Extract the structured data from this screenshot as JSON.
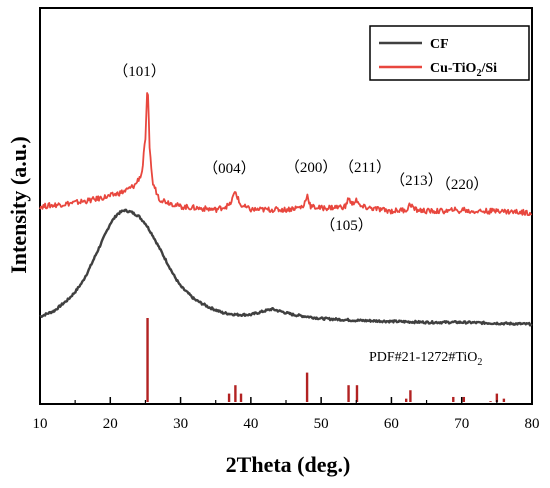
{
  "chart_data": {
    "type": "line",
    "xlabel": "2Theta (deg.)",
    "ylabel": "Intensity (a.u.)",
    "xlim": [
      10,
      80
    ],
    "x_ticks": [
      10,
      20,
      30,
      40,
      50,
      60,
      70,
      80
    ],
    "y_ticks_labeled": false,
    "grid": false,
    "legend_position": "top-right",
    "series": [
      {
        "name": "CF",
        "color": "#404040",
        "x": [
          10,
          12,
          14,
          15,
          16,
          17,
          18,
          19,
          20,
          21,
          22,
          23,
          24,
          25,
          26,
          27,
          28,
          29,
          30,
          32,
          34,
          36,
          38,
          40,
          42,
          43,
          44,
          46,
          50,
          55,
          60,
          65,
          70,
          75,
          80
        ],
        "y": [
          0.06,
          0.09,
          0.15,
          0.19,
          0.24,
          0.31,
          0.39,
          0.47,
          0.55,
          0.6,
          0.62,
          0.61,
          0.59,
          0.55,
          0.49,
          0.42,
          0.35,
          0.28,
          0.22,
          0.15,
          0.11,
          0.08,
          0.07,
          0.07,
          0.09,
          0.1,
          0.09,
          0.07,
          0.05,
          0.04,
          0.035,
          0.03,
          0.03,
          0.025,
          0.02
        ]
      },
      {
        "name": "Cu-TiO2/Si",
        "color": "#e8473e",
        "x": [
          10,
          14,
          17,
          20,
          22,
          23.5,
          24.5,
          25,
          25.3,
          25.6,
          26,
          27,
          30,
          35,
          37,
          37.8,
          38.5,
          40,
          45,
          47.5,
          48,
          48.5,
          50,
          53.5,
          53.9,
          54.4,
          55,
          55.5,
          57,
          60,
          62.2,
          62.7,
          63.3,
          65,
          68.5,
          68.8,
          69.2,
          70,
          70.3,
          70.7,
          74.8,
          75.1,
          75.5,
          80
        ],
        "y": [
          0.2,
          0.22,
          0.24,
          0.27,
          0.3,
          0.34,
          0.42,
          0.65,
          1.0,
          0.6,
          0.36,
          0.25,
          0.2,
          0.18,
          0.21,
          0.3,
          0.21,
          0.18,
          0.18,
          0.2,
          0.28,
          0.2,
          0.19,
          0.2,
          0.26,
          0.21,
          0.25,
          0.2,
          0.19,
          0.17,
          0.18,
          0.22,
          0.18,
          0.17,
          0.17,
          0.19,
          0.17,
          0.17,
          0.19,
          0.17,
          0.17,
          0.19,
          0.17,
          0.16
        ]
      }
    ],
    "reference_pattern": {
      "label": "PDF#21-1272#TiO2",
      "label_main": "PDF#21-1272#TiO",
      "label_sub": "2",
      "color": "#b22222",
      "x": [
        25.3,
        36.9,
        37.8,
        38.6,
        48.0,
        53.9,
        55.1,
        62.1,
        62.7,
        68.8,
        70.3,
        74.1,
        75.0,
        76.0
      ],
      "intensity": [
        1.0,
        0.1,
        0.2,
        0.1,
        0.35,
        0.2,
        0.2,
        0.04,
        0.14,
        0.06,
        0.06,
        0.01,
        0.1,
        0.04
      ]
    },
    "annotations": [
      {
        "text": "（101）",
        "x": 25.3
      },
      {
        "text": "（004）",
        "x": 37.8
      },
      {
        "text": "（200）",
        "x": 48.0
      },
      {
        "text": "（211）",
        "x": 55.1
      },
      {
        "text": "（213）",
        "x": 62.7
      },
      {
        "text": "（220）",
        "x": 69.2
      },
      {
        "text": "（105）",
        "x": 53.9
      }
    ],
    "legend": [
      {
        "name": "CF",
        "label_main": "CF",
        "label_sub": "",
        "label_tail": ""
      },
      {
        "name": "Cu-TiO2/Si",
        "label_main": "Cu-TiO",
        "label_sub": "2",
        "label_tail": "/Si"
      }
    ]
  }
}
